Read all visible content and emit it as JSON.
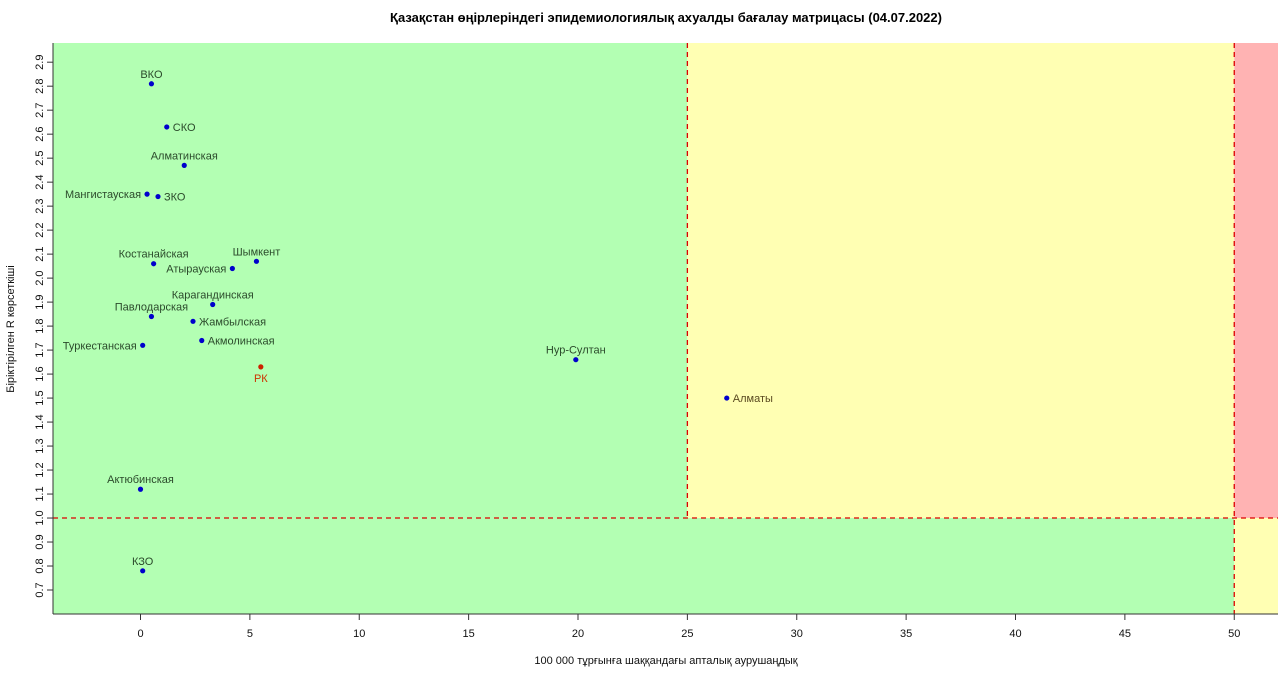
{
  "chart_data": {
    "type": "scatter",
    "title": "Қазақстан өңірлеріндегі эпидемиологиялық ахуалды бағалау матрицасы  (04.07.2022)",
    "xlabel": "100 000 тұрғынға шаққандағы апталық аурушаңдық",
    "ylabel": "Біріктірілген R көрсеткіші",
    "xlim": [
      -4,
      52
    ],
    "ylim": [
      0.6,
      2.98
    ],
    "x_ticks": [
      0,
      5,
      10,
      15,
      20,
      25,
      30,
      35,
      40,
      45,
      50
    ],
    "y_ticks": [
      0.7,
      0.8,
      0.9,
      1.0,
      1.1,
      1.2,
      1.3,
      1.4,
      1.5,
      1.6,
      1.7,
      1.8,
      1.9,
      2.0,
      2.1,
      2.2,
      2.3,
      2.4,
      2.5,
      2.6,
      2.7,
      2.8,
      2.9
    ],
    "grid": false,
    "zones": [
      {
        "x": [
          -4,
          25
        ],
        "y": [
          1.0,
          2.98
        ],
        "color": "#b3ffb3"
      },
      {
        "x": [
          25,
          50
        ],
        "y": [
          1.0,
          2.98
        ],
        "color": "#ffffb3"
      },
      {
        "x": [
          50,
          52
        ],
        "y": [
          1.0,
          2.98
        ],
        "color": "#ffb3b3"
      },
      {
        "x": [
          -4,
          50
        ],
        "y": [
          0.6,
          1.0
        ],
        "color": "#b3ffb3"
      },
      {
        "x": [
          50,
          52
        ],
        "y": [
          0.6,
          1.0
        ],
        "color": "#ffffb3"
      }
    ],
    "threshold_lines": [
      {
        "axis": "x",
        "value": 25,
        "from": 1.0,
        "to": 2.98,
        "color": "#dd0000"
      },
      {
        "axis": "x",
        "value": 50,
        "from": 0.6,
        "to": 2.98,
        "color": "#dd0000"
      },
      {
        "axis": "y",
        "value": 1.0,
        "from": -4,
        "to": 52,
        "color": "#dd0000"
      }
    ],
    "points": [
      {
        "label": "ВКО",
        "x": 0.5,
        "y": 2.81,
        "color": "#0000cc",
        "label_color": "#2b4a2b",
        "label_pos": "top"
      },
      {
        "label": "СКО",
        "x": 1.2,
        "y": 2.63,
        "color": "#0000cc",
        "label_color": "#2b4a2b",
        "label_pos": "right"
      },
      {
        "label": "Алматинская",
        "x": 2.0,
        "y": 2.47,
        "color": "#0000cc",
        "label_color": "#2b4a2b",
        "label_pos": "top"
      },
      {
        "label": "Мангистауская",
        "x": 0.3,
        "y": 2.35,
        "color": "#0000cc",
        "label_color": "#2b4a2b",
        "label_pos": "left"
      },
      {
        "label": "ЗКО",
        "x": 0.8,
        "y": 2.34,
        "color": "#0000cc",
        "label_color": "#2b4a2b",
        "label_pos": "right"
      },
      {
        "label": "Костанайская",
        "x": 0.6,
        "y": 2.06,
        "color": "#0000cc",
        "label_color": "#2b4a2b",
        "label_pos": "top"
      },
      {
        "label": "Шымкент",
        "x": 5.3,
        "y": 2.07,
        "color": "#0000cc",
        "label_color": "#2b4a2b",
        "label_pos": "top"
      },
      {
        "label": "Атырауская",
        "x": 4.2,
        "y": 2.04,
        "color": "#0000cc",
        "label_color": "#2b4a2b",
        "label_pos": "left"
      },
      {
        "label": "Карагандинская",
        "x": 3.3,
        "y": 1.89,
        "color": "#0000cc",
        "label_color": "#2b4a2b",
        "label_pos": "top"
      },
      {
        "label": "Павлодарская",
        "x": 0.5,
        "y": 1.84,
        "color": "#0000cc",
        "label_color": "#2b4a2b",
        "label_pos": "top"
      },
      {
        "label": "Жамбылская",
        "x": 2.4,
        "y": 1.82,
        "color": "#0000cc",
        "label_color": "#2b4a2b",
        "label_pos": "right"
      },
      {
        "label": "Акмолинская",
        "x": 2.8,
        "y": 1.74,
        "color": "#0000cc",
        "label_color": "#2b4a2b",
        "label_pos": "right"
      },
      {
        "label": "Туркестанская",
        "x": 0.1,
        "y": 1.72,
        "color": "#0000cc",
        "label_color": "#2b4a2b",
        "label_pos": "left"
      },
      {
        "label": "Нур-Султан",
        "x": 19.9,
        "y": 1.66,
        "color": "#0000cc",
        "label_color": "#2b4a2b",
        "label_pos": "top"
      },
      {
        "label": "РК",
        "x": 5.5,
        "y": 1.63,
        "color": "#cc2200",
        "label_color": "#cc3300",
        "label_pos": "bottom"
      },
      {
        "label": "Алматы",
        "x": 26.8,
        "y": 1.5,
        "color": "#0000cc",
        "label_color": "#5a4a20",
        "label_pos": "right"
      },
      {
        "label": "Актюбинская",
        "x": 0.0,
        "y": 1.12,
        "color": "#0000cc",
        "label_color": "#2b4a2b",
        "label_pos": "top"
      },
      {
        "label": "КЗО",
        "x": 0.1,
        "y": 0.78,
        "color": "#0000cc",
        "label_color": "#2b4a2b",
        "label_pos": "top"
      }
    ]
  }
}
